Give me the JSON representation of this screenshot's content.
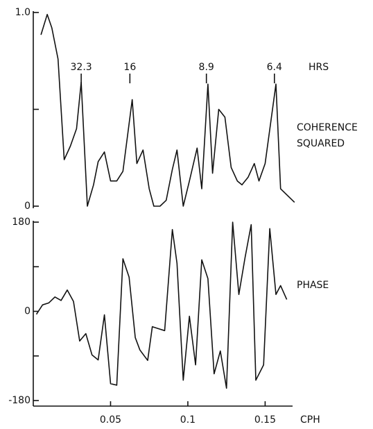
{
  "chart_data": [
    {
      "type": "line",
      "x": [
        0.005,
        0.009,
        0.012,
        0.016,
        0.02,
        0.024,
        0.028,
        0.031,
        0.035,
        0.039,
        0.042,
        0.046,
        0.05,
        0.054,
        0.058,
        0.064,
        0.067,
        0.071,
        0.075,
        0.078,
        0.082,
        0.086,
        0.09,
        0.093,
        0.097,
        0.101,
        0.106,
        0.109,
        0.113,
        0.116,
        0.12,
        0.124,
        0.128,
        0.132,
        0.135,
        0.139,
        0.143,
        0.146,
        0.15,
        0.157,
        0.16,
        0.169
      ],
      "values": [
        0.885,
        0.99,
        0.92,
        0.76,
        0.24,
        0.31,
        0.4,
        0.64,
        0,
        0.11,
        0.23,
        0.28,
        0.13,
        0.13,
        0.18,
        0.55,
        0.22,
        0.29,
        0.09,
        0,
        0,
        0.03,
        0.19,
        0.29,
        0,
        0.13,
        0.3,
        0.09,
        0.63,
        0.17,
        0.5,
        0.46,
        0.2,
        0.13,
        0.11,
        0.15,
        0.22,
        0.13,
        0.22,
        0.63,
        0.09,
        0.02
      ],
      "xlim": [
        0,
        0.17
      ],
      "ylim": [
        0,
        1
      ],
      "yticks": [
        {
          "value": 1,
          "label": "1.0"
        },
        0
      ],
      "yminor": [
        0.5
      ],
      "ylabel": [
        "COHERENCE",
        "SQUARED"
      ],
      "period_label": "HRS",
      "periods": [
        {
          "label": "32.3",
          "x": 0.031
        },
        {
          "label": "16",
          "x": 0.0625
        },
        {
          "label": "8.9",
          "x": 0.112
        },
        {
          "label": "6.4",
          "x": 0.156
        }
      ],
      "color": "#111111"
    },
    {
      "type": "line",
      "x": [
        0.002,
        0.006,
        0.01,
        0.014,
        0.018,
        0.022,
        0.026,
        0.03,
        0.034,
        0.038,
        0.042,
        0.046,
        0.05,
        0.054,
        0.058,
        0.062,
        0.066,
        0.069,
        0.074,
        0.077,
        0.081,
        0.085,
        0.09,
        0.093,
        0.097,
        0.101,
        0.105,
        0.109,
        0.113,
        0.117,
        0.121,
        0.125,
        0.129,
        0.133,
        0.137,
        0.141,
        0.144,
        0.149,
        0.153,
        0.157,
        0.16,
        0.164
      ],
      "values": [
        -6,
        13,
        17,
        29,
        22,
        43,
        20,
        -60,
        -45,
        -88,
        -98,
        -7,
        -146,
        -149,
        106,
        69,
        -53,
        -78,
        -99,
        -31,
        -35,
        -39,
        165,
        97,
        -139,
        -10,
        -108,
        104,
        66,
        -126,
        -80,
        -155,
        180,
        34,
        108,
        175,
        -139,
        -108,
        167,
        34,
        52,
        24
      ],
      "xlim": [
        0,
        0.17
      ],
      "ylim": [
        -180,
        180
      ],
      "yticks": [
        180,
        0,
        -180
      ],
      "yminor": [
        90,
        -90
      ],
      "xticks": [
        0.05,
        0.1,
        0.15
      ],
      "xlabel": "CPH",
      "ylabel": "PHASE",
      "color": "#111111"
    }
  ]
}
